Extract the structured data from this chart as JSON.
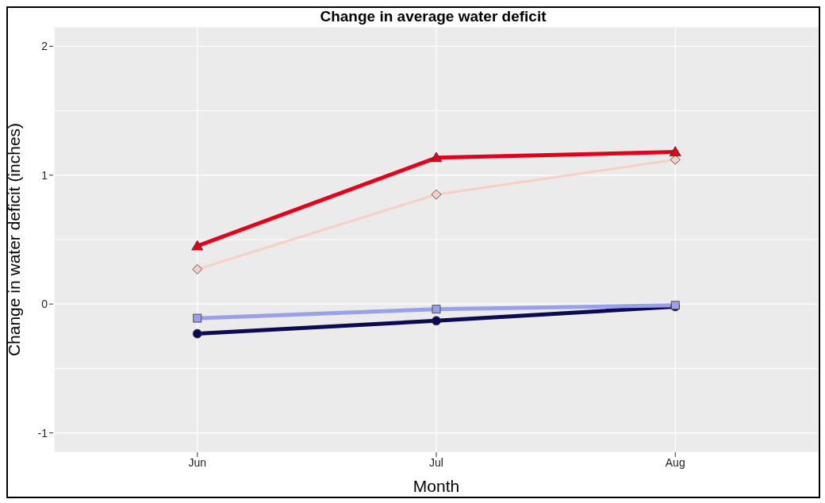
{
  "chart_data": {
    "type": "line",
    "title": "Change in average water deficit",
    "xlabel": "Month",
    "ylabel": "Change in water deficit (inches)",
    "categories": [
      "Jun",
      "Jul",
      "Aug"
    ],
    "series": [
      {
        "color": "#e3001b",
        "values": [
          0.45,
          1.135,
          1.18
        ],
        "marker": "triangle"
      },
      {
        "color": "#f7cfc4",
        "values": [
          0.27,
          0.85,
          1.12
        ],
        "marker": "diamond"
      },
      {
        "color": "#9aa0ea",
        "values": [
          -0.11,
          -0.04,
          -0.01
        ],
        "marker": "square"
      },
      {
        "color": "#0c0a52",
        "values": [
          -0.23,
          -0.13,
          -0.02
        ],
        "marker": "circle"
      }
    ],
    "ylim": [
      -1.15,
      2.15
    ],
    "yticks": [
      -1,
      {
        "value": -0.5,
        "label": null
      },
      0,
      {
        "value": 0.5,
        "label": null
      },
      1,
      {
        "value": 1.5,
        "label": null
      },
      2
    ],
    "grid": true,
    "line_style": "solid"
  }
}
